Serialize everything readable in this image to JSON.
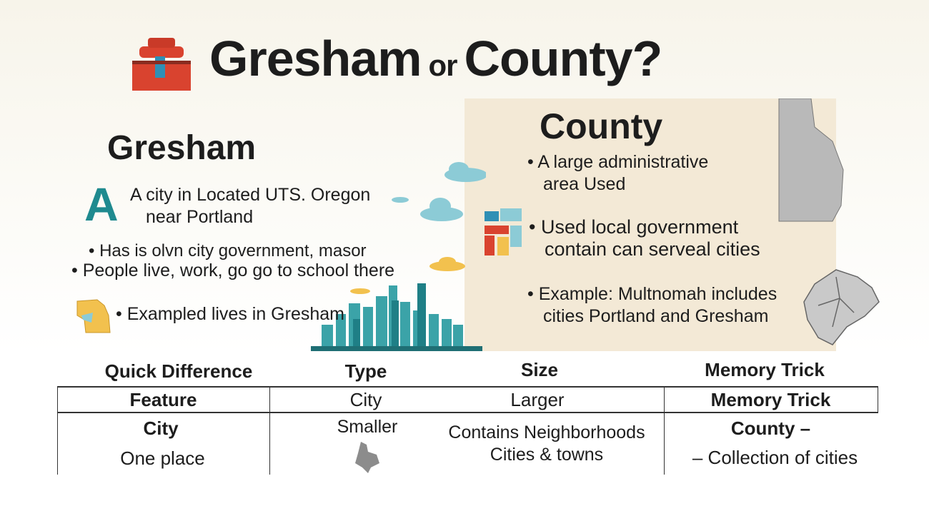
{
  "title": {
    "main": "Gresham",
    "or": "or",
    "county": "County?"
  },
  "gresham": {
    "heading": "Gresham",
    "letter": "A",
    "line1": "A city in Located UTS. Oregon",
    "line2": "near Portland",
    "bullet1": "• Has is olvn city government, masor",
    "bullet2": "• People live, work, go go to school there",
    "bullet3": "• Exampled lives in Gresham"
  },
  "county": {
    "heading": "County",
    "b1a": "• A large administrative",
    "b1b": "area Used",
    "b2a": "• Used local government",
    "b2b": "contain can serveal cities",
    "b3a": "• Example: Multnomah includes",
    "b3b": "cities Portland and Gresham"
  },
  "table": {
    "headers": [
      "Quick Difference",
      "Type",
      "Size",
      "Memory Trick"
    ],
    "row1": [
      "Feature",
      "City",
      "Larger",
      "Memory Trick"
    ],
    "row2": {
      "c1a": "City",
      "c1b": "One place",
      "c2": "Smaller",
      "c3a": "Contains Neighborhoods",
      "c3b": "Cities & towns",
      "c4a": "County –",
      "c4b": "– Collection of cities"
    }
  },
  "colors": {
    "teal": "#1f8a8f",
    "panel": "#f3e9d6",
    "gold": "#f2c14e",
    "red": "#d9432f",
    "gray": "#b9b9b9"
  }
}
